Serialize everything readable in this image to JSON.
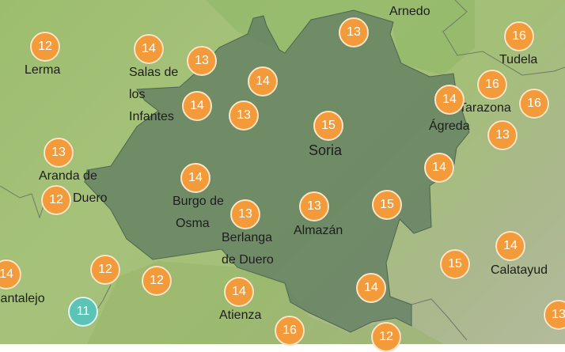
{
  "map": {
    "region_name": "Soria",
    "colors": {
      "warm_marker": "#f39a3a",
      "cool_marker": "#5cc3b7",
      "region_fill": "#5f7a62",
      "background": "#a3bf78"
    },
    "labels": [
      {
        "id": "arnedo",
        "text": "Arnedo"
      },
      {
        "id": "lerma",
        "text": "Lerma"
      },
      {
        "id": "salas1",
        "text": "Salas de"
      },
      {
        "id": "salas2",
        "text": "los"
      },
      {
        "id": "salas3",
        "text": "Infantes"
      },
      {
        "id": "tudela",
        "text": "Tudela"
      },
      {
        "id": "tarazona",
        "text": "Tarazona"
      },
      {
        "id": "agreda",
        "text": "Ágreda"
      },
      {
        "id": "soria",
        "text": "Soria"
      },
      {
        "id": "aranda1",
        "text": "Aranda de"
      },
      {
        "id": "aranda2",
        "text": "Duero"
      },
      {
        "id": "burgo1",
        "text": "Burgo de"
      },
      {
        "id": "burgo2",
        "text": "Osma"
      },
      {
        "id": "berlanga1",
        "text": "Berlanga"
      },
      {
        "id": "berlanga2",
        "text": "de Duero"
      },
      {
        "id": "almazan",
        "text": "Almazán"
      },
      {
        "id": "calatayud",
        "text": "Calatayud"
      },
      {
        "id": "atienza",
        "text": "Atienza"
      },
      {
        "id": "cantalejo",
        "text": "Cantalejo"
      }
    ],
    "temperatures": [
      12,
      14,
      13,
      14,
      14,
      13,
      13,
      15,
      16,
      16,
      14,
      16,
      13,
      14,
      13,
      12,
      14,
      13,
      13,
      15,
      14,
      12,
      12,
      11,
      14,
      14,
      15,
      14,
      13,
      16,
      12
    ]
  }
}
